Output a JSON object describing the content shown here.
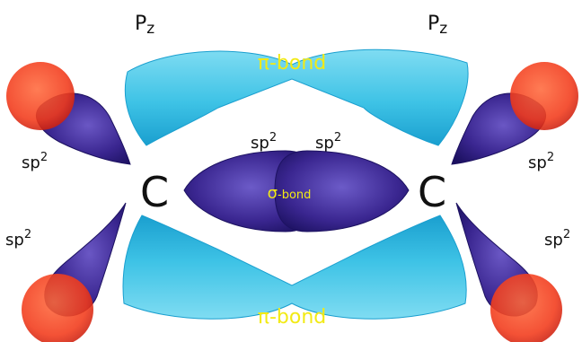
{
  "labels": {
    "pz_left": "P",
    "pz_left_sub": "z",
    "pz_right": "P",
    "pz_right_sub": "z",
    "pi_bond_top": "π-bond",
    "pi_bond_bottom": "π-bond",
    "sigma_symbol": "σ",
    "sigma_text": "-bond",
    "carbon_left": "C",
    "carbon_right": "C",
    "sp_base": "sp",
    "sp_exp": "2"
  },
  "colors": {
    "pi_lobe": "#3ec3e6",
    "sp2_lobe": "#3a2690",
    "hydrogen": "#f23a1a",
    "bond_label": "#f2ea15",
    "text": "#111111"
  }
}
